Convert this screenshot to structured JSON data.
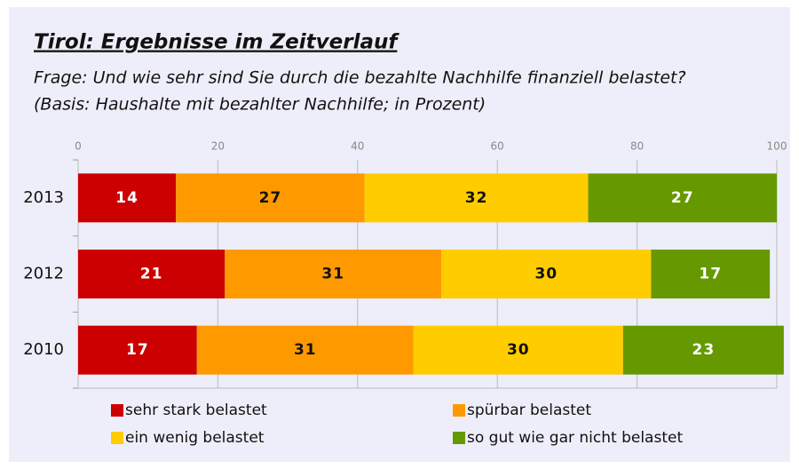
{
  "chart_data": {
    "type": "stacked-bar-horizontal",
    "title": "Tirol: Ergebnisse im Zeitverlauf",
    "subtitle": [
      "Frage: Und wie sehr sind Sie durch die bezahlte Nachhilfe finanziell belastet?",
      "(Basis: Haushalte mit bezahlter Nachhilfe; in Prozent)"
    ],
    "categories": [
      "2013",
      "2012",
      "2010"
    ],
    "series": [
      {
        "name": "sehr stark belastet",
        "color": "#cc0000",
        "label_color": "#ffffff",
        "values": [
          14,
          21,
          17
        ]
      },
      {
        "name": "spürbar belastet",
        "color": "#ff9900",
        "label_color": "#111111",
        "values": [
          27,
          31,
          31
        ]
      },
      {
        "name": "ein wenig belastet",
        "color": "#ffcc00",
        "label_color": "#111111",
        "values": [
          32,
          30,
          30
        ]
      },
      {
        "name": "so gut wie gar nicht belastet",
        "color": "#669900",
        "label_color": "#ffffff",
        "values": [
          27,
          17,
          23
        ]
      }
    ],
    "xlim": [
      0,
      100
    ],
    "xticks": [
      0,
      20,
      40,
      60,
      80,
      100
    ],
    "grid": true
  }
}
